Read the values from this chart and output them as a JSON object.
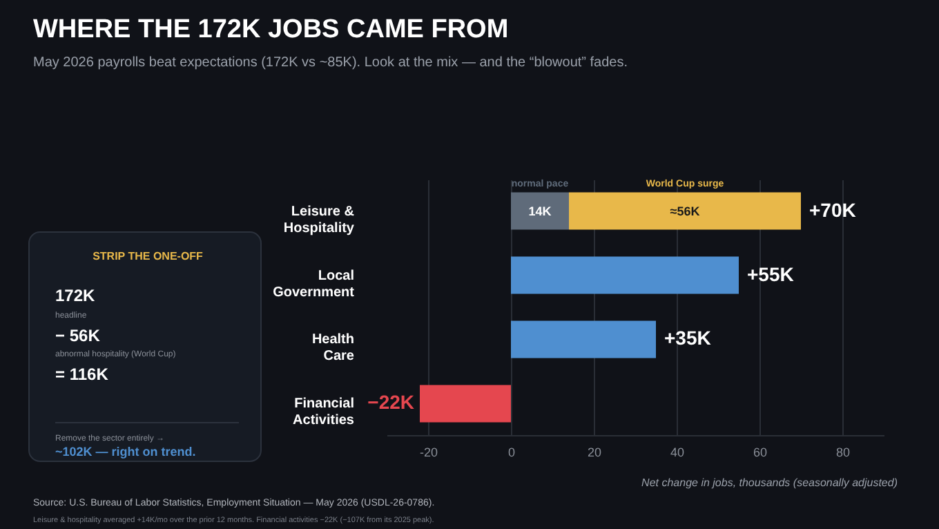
{
  "chart_data": {
    "type": "bar",
    "orientation": "horizontal",
    "stacked": true,
    "title": "WHERE THE 172K JOBS CAME FROM",
    "subtitle": "May 2026 payrolls beat expectations (172K vs ~85K). Look at the mix — and the “blowout” fades.",
    "xlabel": "Net change in jobs, thousands (seasonally adjusted)",
    "categories": [
      "Leisure & Hospitality",
      "Local Government",
      "Health Care",
      "Financial Activities"
    ],
    "series": [
      {
        "name": "normal pace",
        "color": "#5f6b7a",
        "colors": [
          "#5f6b7a",
          "#4f8fd0",
          "#4f8fd0",
          "#e5474f"
        ],
        "values": [
          14,
          55,
          35,
          -22
        ],
        "value_labels": [
          "14K",
          null,
          null,
          null
        ]
      },
      {
        "name": "World Cup surge",
        "color": "#e8b84a",
        "values": [
          56,
          null,
          null,
          null
        ],
        "value_labels": [
          "≈56K",
          null,
          null,
          null
        ]
      }
    ],
    "totals": [
      "+70K",
      "+55K",
      "+35K",
      "−22K"
    ],
    "xlim": [
      -30,
      90
    ],
    "xticks": [
      -20,
      0,
      20,
      40,
      60,
      80
    ],
    "grid": "x",
    "legend": false,
    "annotations": [
      "STRIP THE ONE-OFF",
      "172K",
      "headline",
      "− 56K",
      "abnormal hospitality (World Cup)",
      "= 116K",
      "Remove the sector entirely →",
      "~102K — right on trend.",
      "Source: U.S. Bureau of Labor Statistics, Employment Situation — May 2026 (USDL-26-0786).",
      "Leisure & hospitality averaged +14K/mo over the prior 12 months. Financial activities −22K (−107K from its 2025 peak)."
    ]
  }
}
